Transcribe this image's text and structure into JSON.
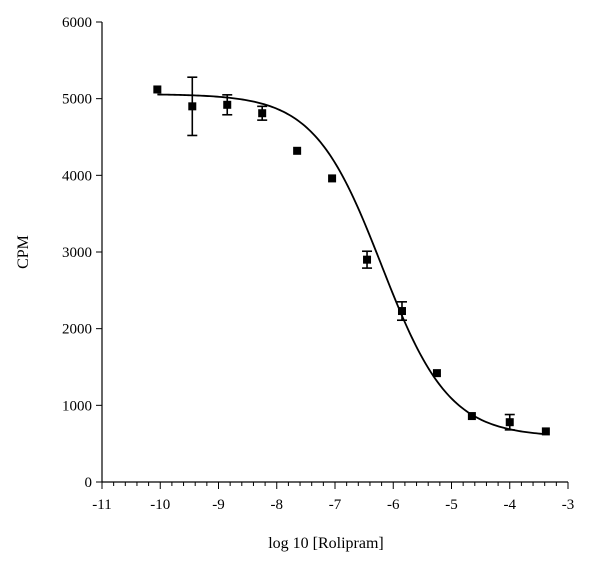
{
  "chart_data": {
    "type": "scatter",
    "xlabel": "log 10 [Rolipram]",
    "ylabel": "CPM",
    "xlim": [
      -11,
      -3
    ],
    "ylim": [
      0,
      6000
    ],
    "x_ticks": [
      -11,
      -10,
      -9,
      -8,
      -7,
      -6,
      -5,
      -4,
      -3
    ],
    "y_ticks": [
      0,
      1000,
      2000,
      3000,
      4000,
      5000,
      6000
    ],
    "x_tick_labels": [
      "-11",
      "-10",
      "-9",
      "-8",
      "-7",
      "-6",
      "-5",
      "-4",
      "-3"
    ],
    "y_tick_labels": [
      "0",
      "1000",
      "2000",
      "3000",
      "4000",
      "5000",
      "6000"
    ],
    "grid": false,
    "points": [
      {
        "x": -10.05,
        "y": 5120,
        "err": 0
      },
      {
        "x": -9.45,
        "y": 4900,
        "err": 380
      },
      {
        "x": -8.85,
        "y": 4920,
        "err": 130
      },
      {
        "x": -8.25,
        "y": 4810,
        "err": 90
      },
      {
        "x": -7.65,
        "y": 4320,
        "err": 0
      },
      {
        "x": -7.05,
        "y": 3960,
        "err": 0
      },
      {
        "x": -6.45,
        "y": 2900,
        "err": 110
      },
      {
        "x": -5.85,
        "y": 2230,
        "err": 120
      },
      {
        "x": -5.25,
        "y": 1420,
        "err": 0
      },
      {
        "x": -4.65,
        "y": 860,
        "err": 0
      },
      {
        "x": -4.0,
        "y": 780,
        "err": 100
      },
      {
        "x": -3.38,
        "y": 660,
        "err": 0
      }
    ],
    "fit_curve": {
      "model": "sigmoidal dose-response",
      "top": 5060,
      "bottom": 590,
      "log_ic50": -6.2,
      "hill_slope": -0.75,
      "x_range": [
        -10.05,
        -3.38
      ]
    }
  }
}
